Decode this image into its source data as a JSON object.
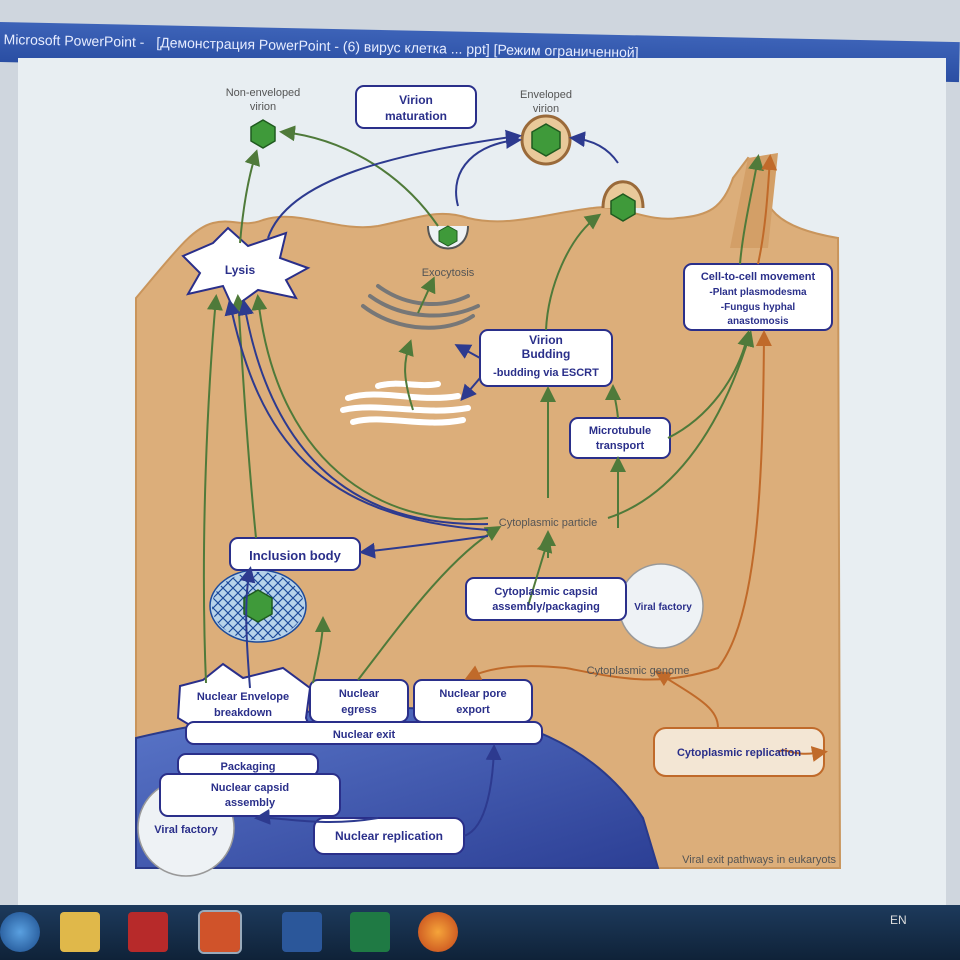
{
  "window": {
    "title_app": "Microsoft PowerPoint -",
    "title_doc": "[Демонстрация PowerPoint - (6) вирус клетка ... ppt] [Режим ограниченной]"
  },
  "diagram": {
    "footer": "Viral exit pathways in eukaryots",
    "labels": {
      "non_enveloped": [
        "Non-enveloped",
        "virion"
      ],
      "virion_maturation": [
        "Virion",
        "maturation"
      ],
      "enveloped": [
        "Enveloped",
        "virion"
      ],
      "lysis": "Lysis",
      "exocytosis": "Exocytosis",
      "virion_budding": [
        "Virion",
        "Budding"
      ],
      "budding_escrt": "-budding via ESCRT",
      "cell_to_cell": [
        "Cell-to-cell movement",
        "-Plant plasmodesma",
        "-Fungus hyphal",
        "anastomosis"
      ],
      "microtubule": [
        "Microtubule",
        "transport"
      ],
      "cytoplasmic_particle": "Cytoplasmic particle",
      "inclusion_body": "Inclusion body",
      "cyto_capsid": [
        "Cytoplasmic capsid",
        "assembly/packaging"
      ],
      "viral_factory_cyto": "Viral factory",
      "cyto_genome": "Cytoplasmic genome",
      "nuclear_envelope": [
        "Nuclear Envelope",
        "breakdown"
      ],
      "nuclear_egress": [
        "Nuclear",
        "egress"
      ],
      "nuclear_pore": [
        "Nuclear pore",
        "export"
      ],
      "nuclear_exit": "Nuclear exit",
      "packaging": "Packaging",
      "nuclear_capsid": [
        "Nuclear capsid",
        "assembly"
      ],
      "viral_factory_nuc": "Viral factory",
      "nuclear_replication": "Nuclear replication",
      "cyto_replication": "Cytoplasmic replication"
    }
  },
  "taskbar": {
    "lang": "EN"
  },
  "colors": {
    "cell": "#dcae7a",
    "nucleus": "#3e57b0",
    "green_arrow": "#4f7a3a",
    "blue_arrow": "#2d3a8f",
    "orange_arrow": "#c06a2a",
    "text": "#2a2f8a"
  }
}
